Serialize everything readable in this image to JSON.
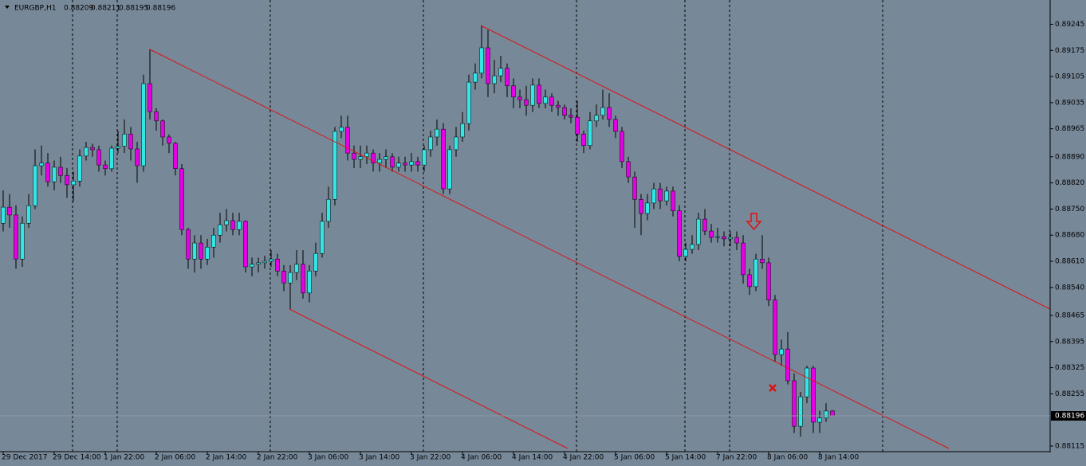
{
  "chart_data": {
    "type": "candlestick",
    "symbol": "EURGBP,H1",
    "categories": [
      "29 Dec 2017",
      null,
      null,
      null,
      null,
      null,
      null,
      null,
      "29 Dec 14:00",
      null,
      null,
      null,
      null,
      null,
      null,
      null,
      "1 Jan 22:00",
      null,
      null,
      null,
      null,
      null,
      null,
      null,
      "2 Jan 06:00",
      null,
      null,
      null,
      null,
      null,
      null,
      null,
      "2 Jan 14:00",
      null,
      null,
      null,
      null,
      null,
      null,
      null,
      "2 Jan 22:00",
      null,
      null,
      null,
      null,
      null,
      null,
      null,
      "3 Jan 06:00",
      null,
      null,
      null,
      null,
      null,
      null,
      null,
      "3 Jan 14:00",
      null,
      null,
      null,
      null,
      null,
      null,
      null,
      "3 Jan 22:00",
      null,
      null,
      null,
      null,
      null,
      null,
      null,
      "4 Jan 06:00",
      null,
      null,
      null,
      null,
      null,
      null,
      null,
      "4 Jan 14:00",
      null,
      null,
      null,
      null,
      null,
      null,
      null,
      "4 Jan 22:00",
      null,
      null,
      null,
      null,
      null,
      null,
      null,
      "5 Jan 06:00",
      null,
      null,
      null,
      null,
      null,
      null,
      null,
      "5 Jan 14:00",
      null,
      null,
      null,
      null,
      null,
      null,
      null,
      "7 Jan 22:00",
      null,
      null,
      null,
      null,
      null,
      null,
      null,
      "8 Jan 06:00",
      null,
      null,
      null,
      null,
      null,
      null,
      null,
      "8 Jan 14:00",
      null,
      null
    ],
    "open": [
      0.88712,
      0.88755,
      0.88734,
      0.88616,
      0.88712,
      0.88759,
      0.88866,
      0.88873,
      0.88823,
      0.88862,
      0.8884,
      0.88815,
      0.88825,
      0.88892,
      0.88915,
      0.88909,
      0.88868,
      0.88858,
      0.88913,
      0.88918,
      0.88951,
      0.88911,
      0.88866,
      0.89086,
      0.89011,
      0.88986,
      0.88943,
      0.88926,
      0.88858,
      0.88695,
      0.88616,
      0.88659,
      0.88616,
      0.88648,
      0.8868,
      0.88708,
      0.88719,
      0.88695,
      0.88717,
      0.88595,
      0.88602,
      0.88606,
      0.8861,
      0.88616,
      0.88584,
      0.88552,
      0.8858,
      0.88602,
      0.88525,
      0.88584,
      0.88631,
      0.88717,
      0.88776,
      0.88958,
      0.88969,
      0.889,
      0.88883,
      0.8889,
      0.889,
      0.88873,
      0.88883,
      0.8889,
      0.88862,
      0.88873,
      0.88868,
      0.88877,
      0.88868,
      0.88909,
      0.88943,
      0.88964,
      0.88804,
      0.88909,
      0.88943,
      0.88979,
      0.8909,
      0.89114,
      0.89182,
      0.89086,
      0.89107,
      0.89127,
      0.8908,
      0.8905,
      0.89043,
      0.89028,
      0.89082,
      0.89033,
      0.8905,
      0.89028,
      0.89022,
      0.89001,
      0.88996,
      0.88951,
      0.8892,
      0.88986,
      0.89001,
      0.89022,
      0.8899,
      0.88958,
      0.88877,
      0.88836,
      0.88776,
      0.88738,
      0.88766,
      0.88804,
      0.88772,
      0.88798,
      0.88745,
      0.88623,
      0.88642,
      0.88655,
      0.88723,
      0.88691,
      0.88674,
      0.88676,
      0.8867,
      0.88674,
      0.88659,
      0.88574,
      0.88542,
      0.88616,
      0.88606,
      0.88506,
      0.8836,
      0.88375,
      0.8829,
      0.88168,
      0.88247,
      0.88324,
      0.88179,
      0.8819,
      0.88209
    ],
    "high": [
      0.888,
      0.8879,
      0.8876,
      0.8873,
      0.8879,
      0.8891,
      0.8892,
      0.889,
      0.8888,
      0.8889,
      0.8886,
      0.8885,
      0.8891,
      0.8893,
      0.88925,
      0.8892,
      0.8888,
      0.8892,
      0.8896,
      0.8899,
      0.8897,
      0.8893,
      0.8911,
      0.89178,
      0.8902,
      0.8899,
      0.8895,
      0.8893,
      0.8887,
      0.887,
      0.8868,
      0.8868,
      0.8867,
      0.887,
      0.8874,
      0.8875,
      0.8874,
      0.8874,
      0.8872,
      0.8862,
      0.8862,
      0.88625,
      0.8864,
      0.8863,
      0.886,
      0.886,
      0.8864,
      0.8864,
      0.886,
      0.8866,
      0.8874,
      0.8881,
      0.8897,
      0.89,
      0.89,
      0.8892,
      0.8892,
      0.8892,
      0.8891,
      0.889,
      0.8891,
      0.889,
      0.8889,
      0.8889,
      0.889,
      0.8889,
      0.8892,
      0.8896,
      0.8899,
      0.8898,
      0.8892,
      0.8897,
      0.8901,
      0.8911,
      0.8914,
      0.8924,
      0.8923,
      0.8915,
      0.8916,
      0.8914,
      0.891,
      0.8907,
      0.8908,
      0.891,
      0.891,
      0.8907,
      0.8906,
      0.8904,
      0.8903,
      0.8902,
      0.8904,
      0.8896,
      0.8901,
      0.8903,
      0.8907,
      0.8906,
      0.89,
      0.8897,
      0.8889,
      0.8885,
      0.8879,
      0.8879,
      0.8882,
      0.8882,
      0.8881,
      0.8881,
      0.8876,
      0.8866,
      0.8868,
      0.8874,
      0.8875,
      0.8871,
      0.887,
      0.8869,
      0.8869,
      0.8869,
      0.8868,
      0.8859,
      0.8863,
      0.8868,
      0.8862,
      0.8852,
      0.884,
      0.8842,
      0.8831,
      0.8826,
      0.8833,
      0.8833,
      0.8821,
      0.8823,
      0.88211
    ],
    "low": [
      0.8869,
      0.887,
      0.8859,
      0.88595,
      0.887,
      0.8875,
      0.8884,
      0.8881,
      0.888,
      0.8882,
      0.8878,
      0.8877,
      0.8881,
      0.8888,
      0.8889,
      0.8885,
      0.8884,
      0.8885,
      0.889,
      0.889,
      0.8888,
      0.8882,
      0.8885,
      0.8899,
      0.8896,
      0.8892,
      0.889,
      0.8884,
      0.8868,
      0.8859,
      0.8858,
      0.8859,
      0.886,
      0.8862,
      0.8866,
      0.8869,
      0.8868,
      0.8868,
      0.8858,
      0.8857,
      0.8858,
      0.8859,
      0.88595,
      0.8857,
      0.8853,
      0.8848,
      0.8856,
      0.8851,
      0.885,
      0.8857,
      0.8862,
      0.887,
      0.8876,
      0.8894,
      0.8888,
      0.8886,
      0.8886,
      0.8887,
      0.8885,
      0.8885,
      0.8886,
      0.8885,
      0.8885,
      0.8885,
      0.8885,
      0.8885,
      0.8885,
      0.8889,
      0.8892,
      0.8879,
      0.8879,
      0.8889,
      0.8893,
      0.8896,
      0.8907,
      0.891,
      0.8905,
      0.8906,
      0.8909,
      0.8905,
      0.8902,
      0.8902,
      0.89,
      0.8901,
      0.8902,
      0.8902,
      0.8901,
      0.89,
      0.8899,
      0.8898,
      0.8893,
      0.889,
      0.8891,
      0.8897,
      0.8899,
      0.8897,
      0.8894,
      0.8886,
      0.8882,
      0.887,
      0.8868,
      0.8872,
      0.8875,
      0.8875,
      0.8876,
      0.8873,
      0.8861,
      0.8861,
      0.8863,
      0.8864,
      0.8868,
      0.8866,
      0.8866,
      0.8865,
      0.8865,
      0.8864,
      0.8855,
      0.8852,
      0.8853,
      0.8859,
      0.8849,
      0.8834,
      0.8833,
      0.8828,
      0.8815,
      0.8814,
      0.8823,
      0.8815,
      0.8815,
      0.8818,
      0.88195
    ],
    "close": [
      0.88755,
      0.88734,
      0.88616,
      0.88712,
      0.88759,
      0.88866,
      0.88873,
      0.88823,
      0.88862,
      0.8884,
      0.88815,
      0.88825,
      0.88892,
      0.88915,
      0.88909,
      0.88868,
      0.88858,
      0.88913,
      0.88918,
      0.88951,
      0.88911,
      0.88866,
      0.89086,
      0.89011,
      0.88986,
      0.88943,
      0.88926,
      0.88858,
      0.88695,
      0.88616,
      0.88659,
      0.88616,
      0.88648,
      0.8868,
      0.88708,
      0.88719,
      0.88695,
      0.88717,
      0.88595,
      0.88602,
      0.88606,
      0.8861,
      0.88616,
      0.88584,
      0.88552,
      0.8858,
      0.88602,
      0.88525,
      0.88584,
      0.88631,
      0.88717,
      0.88776,
      0.88958,
      0.88969,
      0.889,
      0.88883,
      0.8889,
      0.889,
      0.88873,
      0.88883,
      0.8889,
      0.88862,
      0.88873,
      0.88868,
      0.88877,
      0.88868,
      0.88909,
      0.88943,
      0.88964,
      0.88804,
      0.88909,
      0.88943,
      0.88979,
      0.8909,
      0.89114,
      0.89182,
      0.89086,
      0.89107,
      0.89127,
      0.8908,
      0.8905,
      0.89043,
      0.89028,
      0.89082,
      0.89033,
      0.8905,
      0.89028,
      0.89022,
      0.89001,
      0.88996,
      0.88951,
      0.8892,
      0.88986,
      0.89001,
      0.89022,
      0.8899,
      0.88958,
      0.88877,
      0.88836,
      0.88776,
      0.88738,
      0.88766,
      0.88804,
      0.88772,
      0.88798,
      0.88745,
      0.88623,
      0.88642,
      0.88655,
      0.88723,
      0.88691,
      0.88674,
      0.88676,
      0.8867,
      0.88674,
      0.88659,
      0.88574,
      0.88542,
      0.88616,
      0.88606,
      0.88506,
      0.8836,
      0.88375,
      0.8829,
      0.88168,
      0.88247,
      0.88324,
      0.88179,
      0.8819,
      0.88209,
      0.88196
    ],
    "up_color": "#33e6e6",
    "down_color": "#e600e6",
    "ylim": [
      0.881,
      0.8931
    ],
    "yticks": [
      0.89245,
      0.89175,
      0.89105,
      0.89035,
      0.88965,
      {
        "value": 0.8889,
        "label": "0.88890"
      },
      {
        "value": 0.8882,
        "label": "0.88820"
      },
      {
        "value": 0.8875,
        "label": "0.88750"
      },
      {
        "value": 0.8868,
        "label": "0.88680"
      },
      {
        "value": 0.8861,
        "label": "0.88610"
      },
      {
        "value": 0.8854,
        "label": "0.88540"
      },
      0.88465,
      0.88395,
      0.88325,
      0.88255,
      0.88115
    ]
  }
}
